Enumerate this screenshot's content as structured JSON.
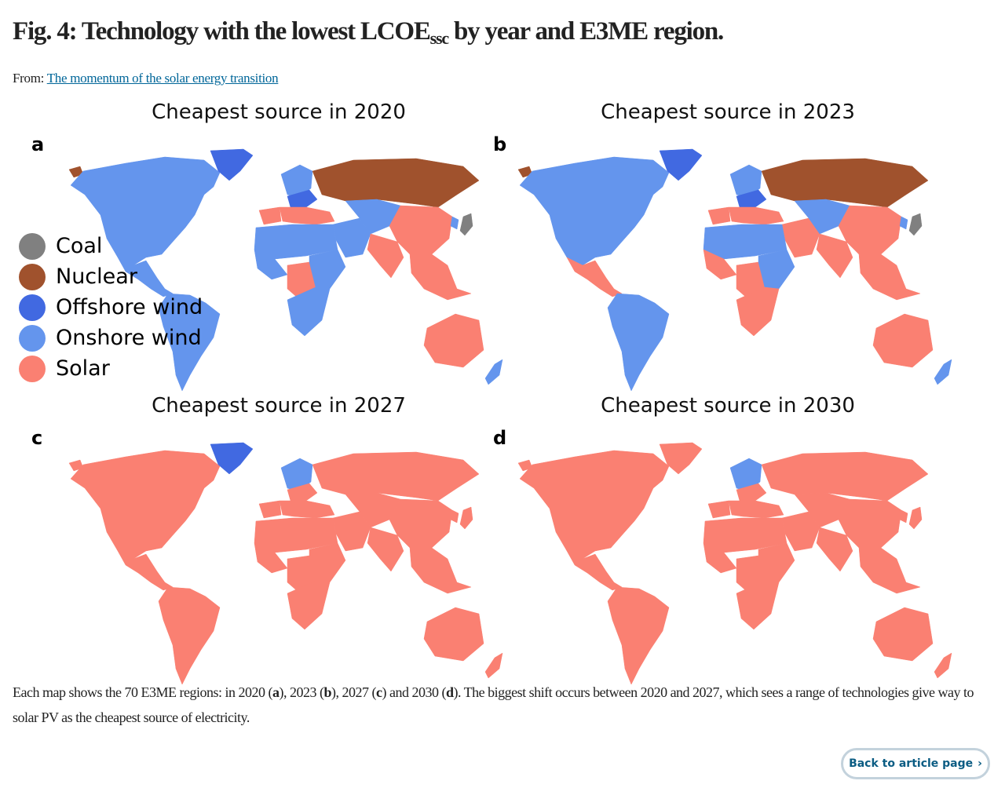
{
  "figure": {
    "title_main": "Fig. 4: Technology with the lowest LCOE",
    "title_sub": "ssc",
    "title_rest": " by year and E3ME region.",
    "from_label": "From: ",
    "from_link": "The momentum of the solar energy transition"
  },
  "legend": {
    "items": [
      {
        "label": "Coal",
        "color": "#808080"
      },
      {
        "label": "Nuclear",
        "color": "#a0522d"
      },
      {
        "label": "Offshore wind",
        "color": "#4169e1"
      },
      {
        "label": "Onshore wind",
        "color": "#6495ed"
      },
      {
        "label": "Solar",
        "color": "#fa8072"
      }
    ]
  },
  "panels": [
    {
      "letter": "a",
      "title": "Cheapest source in 2020",
      "regions": {
        "north_america": "Onshore wind",
        "alaska_tip": "Nuclear",
        "greenland": "Offshore wind",
        "central_america": "Onshore wind",
        "south_america": "Onshore wind",
        "western_europe": "Onshore wind",
        "central_europe": "Offshore wind",
        "iberia": "Solar",
        "southern_europe": "Solar",
        "russia": "Nuclear",
        "middle_east": "Onshore wind",
        "central_asia": "Onshore wind",
        "north_africa": "Onshore wind",
        "west_africa": "Onshore wind",
        "central_africa": "Solar",
        "east_africa": "Onshore wind",
        "southern_africa": "Onshore wind",
        "china": "Solar",
        "india": "Solar",
        "southeast_asia": "Solar",
        "japan": "Coal",
        "korea": "Onshore wind",
        "australia": "Solar",
        "new_zealand": "Onshore wind"
      }
    },
    {
      "letter": "b",
      "title": "Cheapest source in 2023",
      "regions": {
        "north_america": "Onshore wind",
        "alaska_tip": "Nuclear",
        "greenland": "Offshore wind",
        "central_america": "Solar",
        "south_america": "Onshore wind",
        "western_europe": "Onshore wind",
        "central_europe": "Offshore wind",
        "iberia": "Solar",
        "southern_europe": "Solar",
        "russia": "Nuclear",
        "middle_east": "Solar",
        "central_asia": "Onshore wind",
        "north_africa": "Onshore wind",
        "west_africa": "Solar",
        "central_africa": "Solar",
        "east_africa": "Onshore wind",
        "southern_africa": "Solar",
        "china": "Solar",
        "india": "Solar",
        "southeast_asia": "Solar",
        "japan": "Coal",
        "korea": "Onshore wind",
        "australia": "Solar",
        "new_zealand": "Onshore wind"
      }
    },
    {
      "letter": "c",
      "title": "Cheapest source in 2027",
      "regions": {
        "north_america": "Solar",
        "alaska_tip": "Solar",
        "greenland": "Offshore wind",
        "central_america": "Solar",
        "south_america": "Solar",
        "western_europe": "Onshore wind",
        "central_europe": "Solar",
        "iberia": "Solar",
        "southern_europe": "Solar",
        "russia": "Solar",
        "middle_east": "Solar",
        "central_asia": "Solar",
        "north_africa": "Solar",
        "west_africa": "Solar",
        "central_africa": "Solar",
        "east_africa": "Solar",
        "southern_africa": "Solar",
        "china": "Solar",
        "india": "Solar",
        "southeast_asia": "Solar",
        "japan": "Solar",
        "korea": "Solar",
        "australia": "Solar",
        "new_zealand": "Solar"
      }
    },
    {
      "letter": "d",
      "title": "Cheapest source in 2030",
      "regions": {
        "north_america": "Solar",
        "alaska_tip": "Solar",
        "greenland": "Solar",
        "central_america": "Solar",
        "south_america": "Solar",
        "western_europe": "Onshore wind",
        "central_europe": "Solar",
        "iberia": "Solar",
        "southern_europe": "Solar",
        "russia": "Solar",
        "middle_east": "Solar",
        "central_asia": "Solar",
        "north_africa": "Solar",
        "west_africa": "Solar",
        "central_africa": "Solar",
        "east_africa": "Solar",
        "southern_africa": "Solar",
        "china": "Solar",
        "india": "Solar",
        "southeast_asia": "Solar",
        "japan": "Solar",
        "korea": "Solar",
        "australia": "Solar",
        "new_zealand": "Solar"
      }
    }
  ],
  "caption": {
    "p1": "Each map shows the 70 E3ME regions: in 2020 (",
    "a": "a",
    "p2": "), 2023 (",
    "b": "b",
    "p3": "), 2027 (",
    "c": "c",
    "p4": ") and 2030 (",
    "d": "d",
    "p5": "). The biggest shift occurs between 2020 and 2027, which sees a range of technologies give way to solar PV as the cheapest source of electricity."
  },
  "back_button": {
    "label": "Back to article page",
    "chevron": "›"
  }
}
